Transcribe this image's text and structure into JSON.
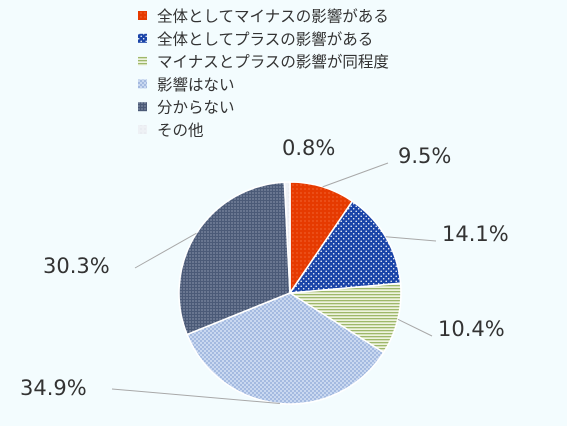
{
  "chart_data": {
    "type": "pie",
    "legend_position": "top-left",
    "categories": [
      "全体としてマイナスの影響がある",
      "全体としてプラスの影響がある",
      "マイナスとプラスの影響が同程度",
      "影響はない",
      "分からない",
      "その他"
    ],
    "values": [
      9.5,
      14.1,
      10.4,
      34.9,
      30.3,
      0.8
    ],
    "data_labels": [
      "9.5%",
      "14.1%",
      "10.4%",
      "34.9%",
      "30.3%",
      "0.8%"
    ],
    "colors": [
      "#e63a00",
      "#1a44a8",
      "#b9cf8c",
      "#a6bde3",
      "#5b6a86",
      "#e9edf2"
    ],
    "start_angle_deg": 0,
    "direction": "clockwise"
  }
}
